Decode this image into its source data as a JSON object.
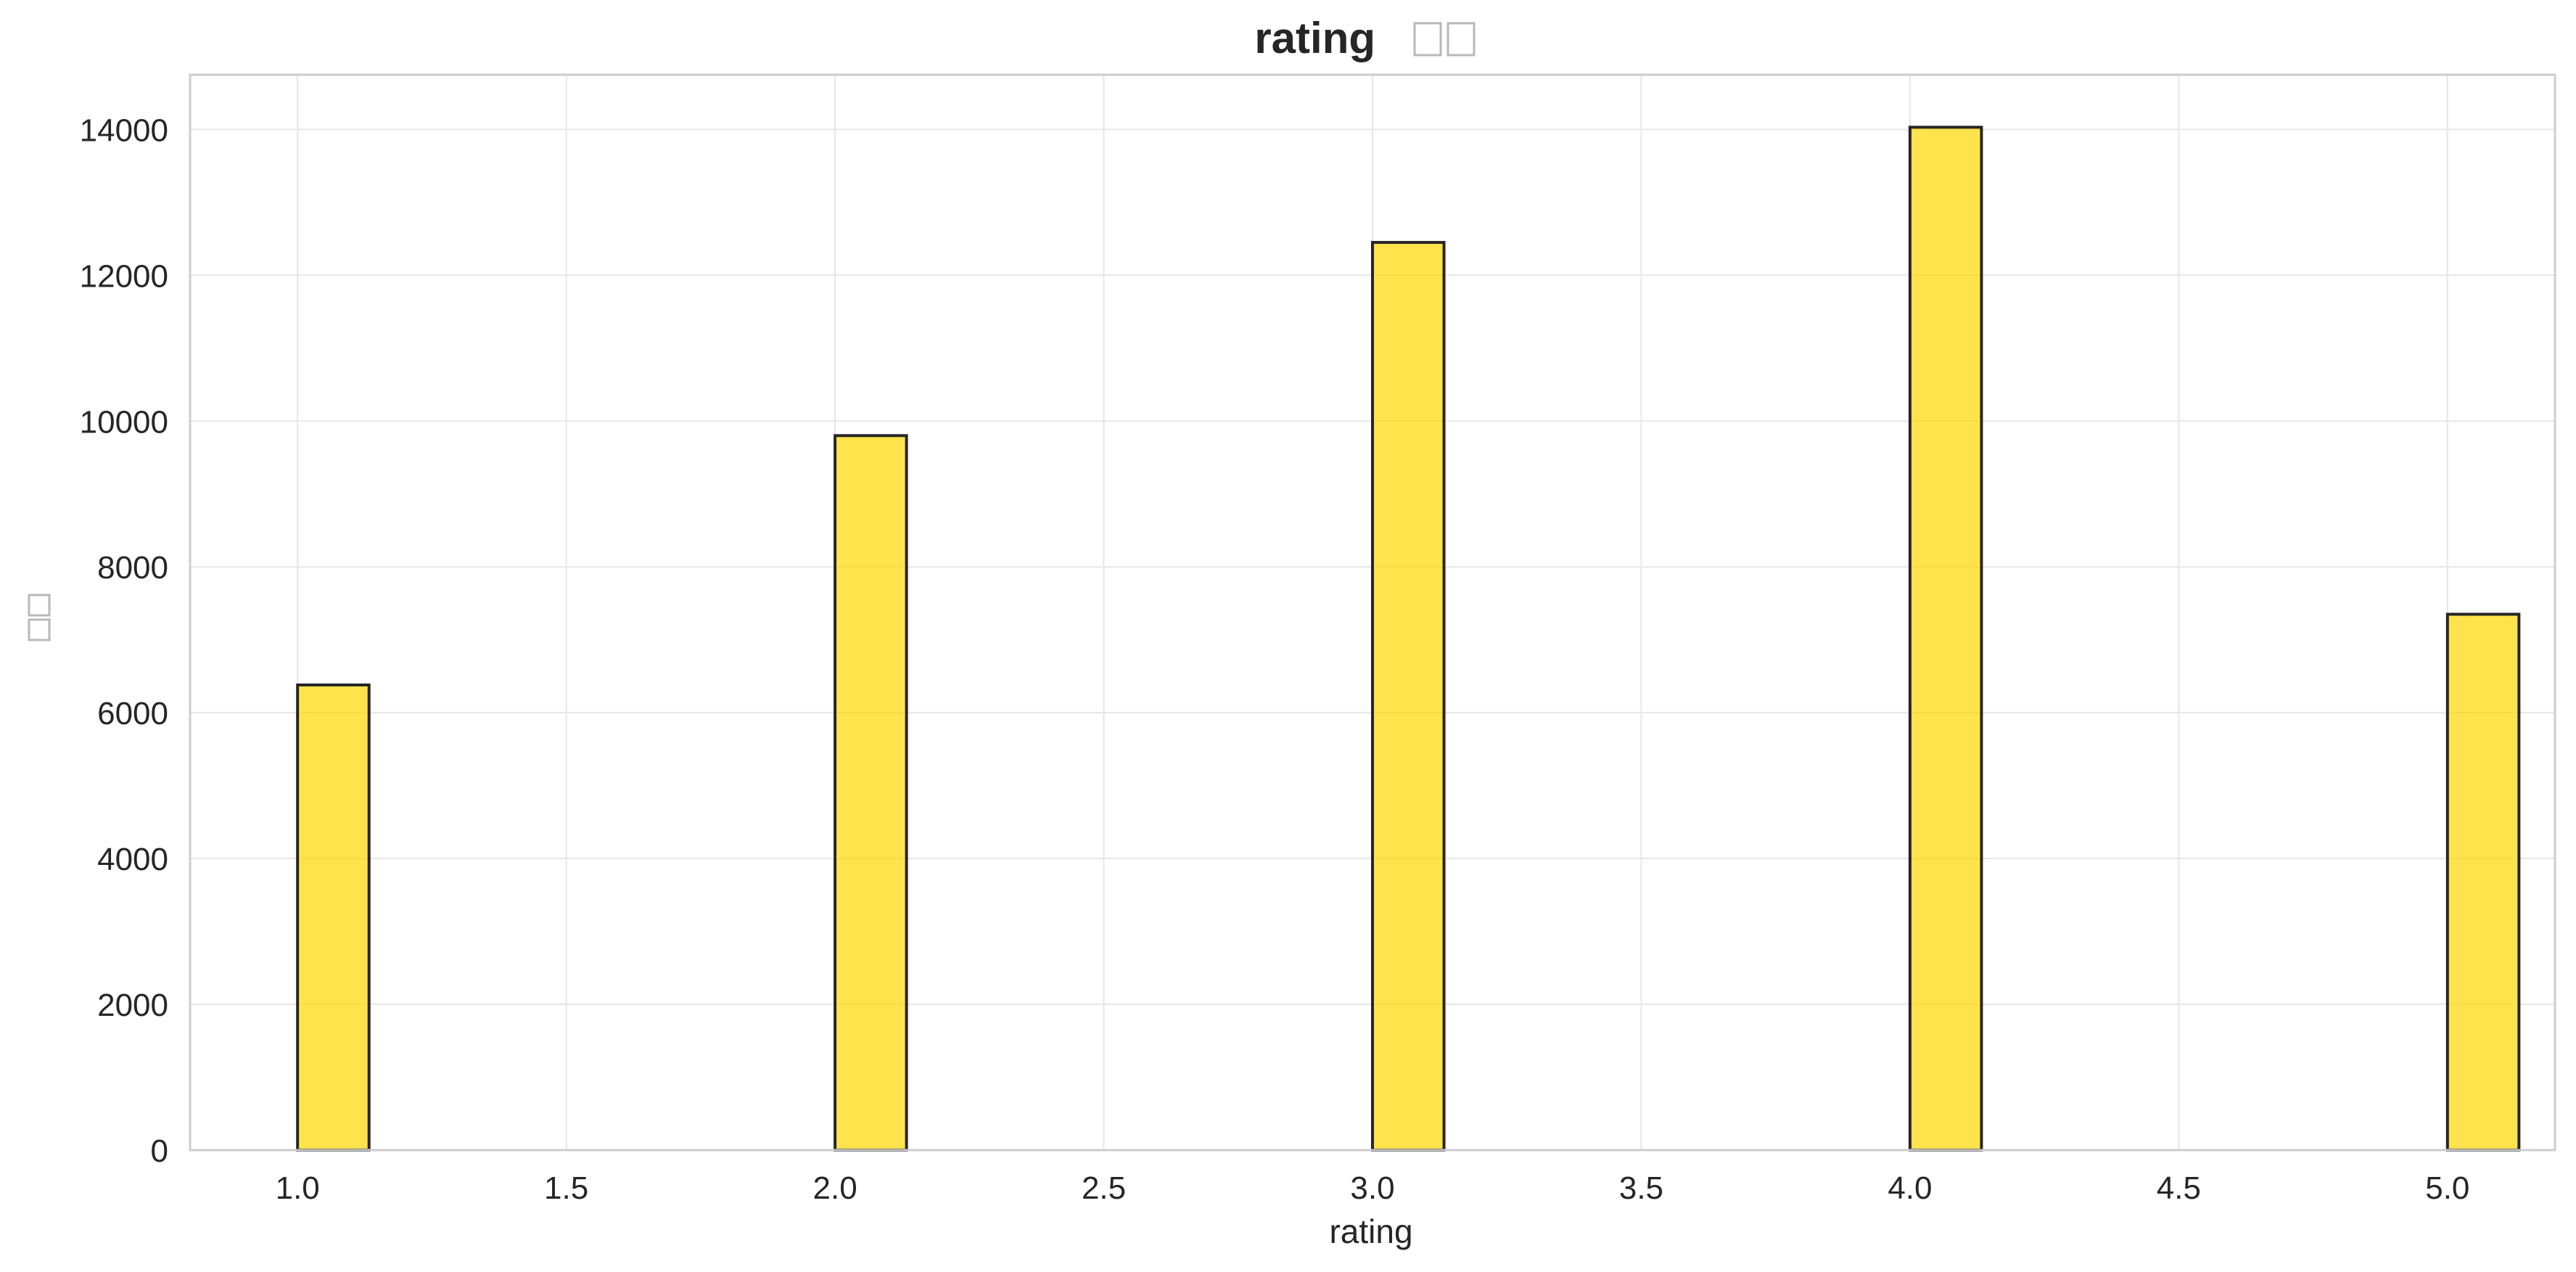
{
  "chart_data": {
    "type": "bar",
    "title": "rating",
    "title_suffix_glyphs": 2,
    "xlabel": "rating",
    "ylabel_glyphs": 2,
    "x": [
      1.0,
      2.0,
      3.0,
      4.0,
      5.0
    ],
    "values": [
      6380,
      9800,
      12450,
      14030,
      7350
    ],
    "bin_width": 0.133,
    "xlim": [
      0.8,
      5.2
    ],
    "ylim": [
      0,
      14750
    ],
    "xticks": [
      1.0,
      1.5,
      2.0,
      2.5,
      3.0,
      3.5,
      4.0,
      4.5,
      5.0
    ],
    "xtick_labels": [
      "1.0",
      "1.5",
      "2.0",
      "2.5",
      "3.0",
      "3.5",
      "4.0",
      "4.5",
      "5.0"
    ],
    "yticks": [
      0,
      2000,
      4000,
      6000,
      8000,
      10000,
      12000,
      14000
    ],
    "ytick_labels": [
      "0",
      "2000",
      "4000",
      "6000",
      "8000",
      "10000",
      "12000",
      "14000"
    ],
    "grid": true,
    "legend": "none",
    "colors": {
      "bar_fill": "#FFD700",
      "bar_opacity": 0.7,
      "bar_edge": "#262626",
      "grid": "#e6e6e6",
      "frame": "#cccccc",
      "text": "#262626"
    }
  }
}
